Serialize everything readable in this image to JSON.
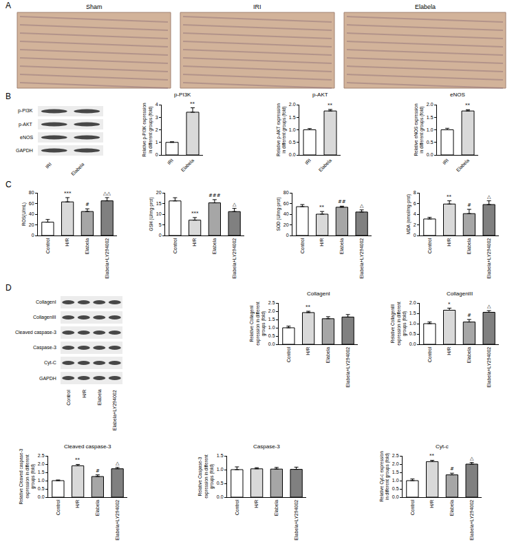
{
  "panels": [
    {
      "label": "A",
      "images": [
        "Sham",
        "IRI",
        "Elabela"
      ]
    },
    {
      "label": "B",
      "blot": {
        "rows": [
          "p-PI3K",
          "p-AKT",
          "eNOS",
          "GAPDH"
        ],
        "lanes": [
          "IRI",
          "Elabela"
        ]
      }
    },
    {
      "label": "C"
    },
    {
      "label": "D",
      "blot": {
        "rows": [
          "CollagenI",
          "CollagenIII",
          "Cleaved caspase-3",
          "Caspase-3",
          "Cyt-C",
          "GAPDH"
        ],
        "lanes": [
          "Control",
          "H/R",
          "Elabela",
          "Elabela+LY294002"
        ]
      }
    }
  ],
  "chart_data": [
    {
      "panel": "B",
      "type": "bar",
      "title": "p-PI3K",
      "y_label": "Relative p-PI3K expression in different groups (fold)",
      "categories": [
        "IRI",
        "Elabela"
      ],
      "values": [
        1.0,
        3.4
      ],
      "errors": [
        0.05,
        0.35
      ],
      "marks": [
        null,
        "**"
      ],
      "colors": [
        "#ffffff",
        "#d9d9d9"
      ],
      "ylim": [
        0,
        4
      ],
      "yticks": [
        0,
        1,
        2,
        3,
        4
      ]
    },
    {
      "panel": "B",
      "type": "bar",
      "title": "p-AKT",
      "y_label": "Relative p-AKT expression in different groups (fold)",
      "categories": [
        "IRI",
        "Elabela"
      ],
      "values": [
        1.0,
        1.75
      ],
      "errors": [
        0.05,
        0.06
      ],
      "marks": [
        null,
        "**"
      ],
      "colors": [
        "#ffffff",
        "#d9d9d9"
      ],
      "ylim": [
        0,
        2
      ],
      "yticks": [
        {
          "value": 0,
          "label": "0.0"
        },
        0.5,
        {
          "value": 1,
          "label": "1.0"
        },
        1.5,
        {
          "value": 2,
          "label": "2.0"
        }
      ]
    },
    {
      "panel": "B",
      "type": "bar",
      "title": "eNOS",
      "y_label": "Relative eNOS expression in different groups (fold)",
      "categories": [
        "IRI",
        "Elabela"
      ],
      "values": [
        1.0,
        1.75
      ],
      "errors": [
        0.06,
        0.05
      ],
      "marks": [
        null,
        "**"
      ],
      "colors": [
        "#ffffff",
        "#d9d9d9"
      ],
      "ylim": [
        0,
        2
      ],
      "yticks": [
        {
          "value": 0,
          "label": "0.0"
        },
        0.5,
        {
          "value": 1,
          "label": "1.0"
        },
        1.5,
        {
          "value": 2,
          "label": "2.0"
        }
      ]
    },
    {
      "panel": "C",
      "type": "bar",
      "y_label": "ROS(U/mL)",
      "categories": [
        "Control",
        "H/R",
        "Elabela",
        "Elabela+LY294002"
      ],
      "values": [
        25,
        63,
        45,
        65
      ],
      "errors": [
        5,
        8,
        5,
        6
      ],
      "marks": [
        null,
        "***",
        "#",
        "△△"
      ],
      "colors": [
        "#ffffff",
        "#d9d9d9",
        "#a6a6a6",
        "#808080"
      ],
      "ylim": [
        0,
        80
      ],
      "yticks": [
        0,
        20,
        40,
        60,
        80
      ]
    },
    {
      "panel": "C",
      "type": "bar",
      "y_label": "GSH (U/mg·prot)",
      "categories": [
        "Control",
        "H/R",
        "Elabela",
        "Elabela+LY294002"
      ],
      "values": [
        16.2,
        7.2,
        15.3,
        11.2
      ],
      "errors": [
        1.5,
        1.2,
        1.5,
        1.5
      ],
      "marks": [
        null,
        "***",
        "###",
        "△"
      ],
      "colors": [
        "#ffffff",
        "#d9d9d9",
        "#a6a6a6",
        "#808080"
      ],
      "ylim": [
        0,
        20
      ],
      "yticks": [
        0,
        5,
        10,
        15,
        20
      ]
    },
    {
      "panel": "C",
      "type": "bar",
      "y_label": "SOD (U/mg·prot)",
      "categories": [
        "Control",
        "H/R",
        "Elabela",
        "Elabela+LY294002"
      ],
      "values": [
        54,
        40,
        53,
        44
      ],
      "errors": [
        4,
        5,
        2,
        4
      ],
      "marks": [
        null,
        "**",
        "##",
        "△"
      ],
      "colors": [
        "#ffffff",
        "#d9d9d9",
        "#a6a6a6",
        "#808080"
      ],
      "ylim": [
        0,
        80
      ],
      "yticks": [
        0,
        20,
        40,
        60,
        80
      ]
    },
    {
      "panel": "C",
      "type": "bar",
      "y_label": "MDA (nmol/mg·prot)",
      "categories": [
        "Control",
        "H/R",
        "Elabela",
        "Elabela+LY294002"
      ],
      "values": [
        3.1,
        5.9,
        4.1,
        5.8
      ],
      "errors": [
        0.3,
        0.6,
        0.8,
        0.7
      ],
      "marks": [
        null,
        "**",
        "#",
        "△"
      ],
      "colors": [
        "#ffffff",
        "#d9d9d9",
        "#a6a6a6",
        "#808080"
      ],
      "ylim": [
        0,
        8
      ],
      "yticks": [
        0,
        2,
        4,
        6,
        8
      ]
    },
    {
      "panel": "D",
      "type": "bar",
      "title": "CollagenI",
      "y_label": "Relative CollagenI expression in different groups (fold)",
      "categories": [
        "Control",
        "H/R",
        "Elabela",
        "Elabela+LY294002"
      ],
      "values": [
        1.0,
        1.92,
        1.55,
        1.65
      ],
      "errors": [
        0.1,
        0.08,
        0.12,
        0.15
      ],
      "marks": [
        null,
        "**",
        null,
        null
      ],
      "colors": [
        "#ffffff",
        "#d9d9d9",
        "#a6a6a6",
        "#808080"
      ],
      "ylim": [
        0,
        2.5
      ],
      "yticks": [
        {
          "value": 0,
          "label": "0.0"
        },
        0.5,
        {
          "value": 1,
          "label": "1.0"
        },
        1.5,
        {
          "value": 2,
          "label": "2.0"
        },
        2.5
      ]
    },
    {
      "panel": "D",
      "type": "bar",
      "title": "CollagenIII",
      "y_label": "Relative CollagenIII expression in different groups (fold)",
      "categories": [
        "Control",
        "H/R",
        "Elabela",
        "Elabela+LY294002"
      ],
      "values": [
        1.0,
        1.65,
        1.08,
        1.55
      ],
      "errors": [
        0.08,
        0.1,
        0.12,
        0.08
      ],
      "marks": [
        null,
        "*",
        "#",
        "△"
      ],
      "colors": [
        "#ffffff",
        "#d9d9d9",
        "#a6a6a6",
        "#808080"
      ],
      "ylim": [
        0,
        2
      ],
      "yticks": [
        {
          "value": 0,
          "label": "0.0"
        },
        0.5,
        {
          "value": 1,
          "label": "1.0"
        },
        1.5,
        {
          "value": 2,
          "label": "2.0"
        }
      ]
    },
    {
      "panel": "D",
      "type": "bar",
      "title": "Cleaved caspase-3",
      "y_label": "Relative Cleaved caspase-3 expression in different groups (fold)",
      "categories": [
        "Control",
        "H/R",
        "Elabela",
        "Elabela+LY294002"
      ],
      "values": [
        1.0,
        1.9,
        1.25,
        1.72
      ],
      "errors": [
        0.04,
        0.08,
        0.1,
        0.08
      ],
      "marks": [
        null,
        "**",
        "#",
        "△"
      ],
      "colors": [
        "#ffffff",
        "#d9d9d9",
        "#a6a6a6",
        "#808080"
      ],
      "ylim": [
        0,
        2.5
      ],
      "yticks": [
        {
          "value": 0,
          "label": "0.0"
        },
        0.5,
        {
          "value": 1,
          "label": "1.0"
        },
        1.5,
        {
          "value": 2,
          "label": "2.0"
        },
        2.5
      ]
    },
    {
      "panel": "D",
      "type": "bar",
      "title": "Caspase-3",
      "y_label": "Relative Caspase-3 expression in different groups (fold)",
      "categories": [
        "Control",
        "H/R",
        "Elabela",
        "Elabela+LY294002"
      ],
      "values": [
        1.0,
        1.03,
        1.02,
        1.01
      ],
      "errors": [
        0.1,
        0.04,
        0.06,
        0.08
      ],
      "marks": [
        null,
        null,
        null,
        null
      ],
      "colors": [
        "#ffffff",
        "#d9d9d9",
        "#a6a6a6",
        "#808080"
      ],
      "ylim": [
        0,
        1.5
      ],
      "yticks": [
        {
          "value": 0,
          "label": "0.0"
        },
        0.5,
        {
          "value": 1,
          "label": "1.0"
        },
        1.5
      ]
    },
    {
      "panel": "D",
      "type": "bar",
      "title": "Cyt-c",
      "y_label": "Relative Cyt-c expression in different groups (fold)",
      "categories": [
        "Control",
        "H/R",
        "Elabela",
        "Elabela+LY294002"
      ],
      "values": [
        1.0,
        2.15,
        1.35,
        2.0
      ],
      "errors": [
        0.1,
        0.08,
        0.1,
        0.1
      ],
      "marks": [
        null,
        "**",
        "#",
        "△"
      ],
      "colors": [
        "#ffffff",
        "#d9d9d9",
        "#a6a6a6",
        "#808080"
      ],
      "ylim": [
        0,
        2.5
      ],
      "yticks": [
        {
          "value": 0,
          "label": "0.0"
        },
        0.5,
        {
          "value": 1,
          "label": "1.0"
        },
        1.5,
        {
          "value": 2,
          "label": "2.0"
        },
        2.5
      ]
    }
  ]
}
